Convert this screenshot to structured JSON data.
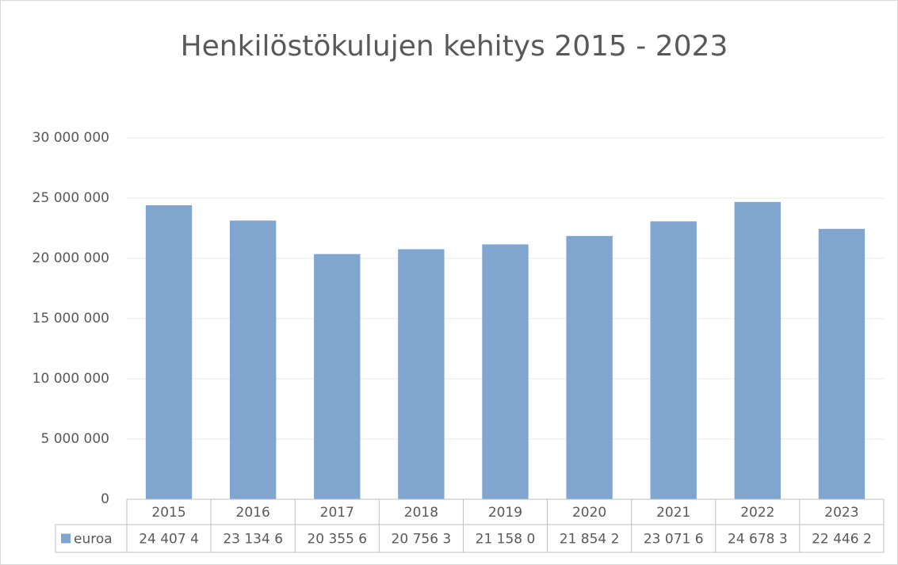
{
  "chart_data": {
    "type": "bar",
    "title": "Henkilöstökulujen kehitys 2015 - 2023",
    "categories": [
      "2015",
      "2016",
      "2017",
      "2018",
      "2019",
      "2020",
      "2021",
      "2022",
      "2023"
    ],
    "series": [
      {
        "name": "euroa",
        "color": "#80a6d0",
        "values": [
          24407400,
          23134600,
          20355600,
          20756300,
          21158000,
          21854200,
          23071600,
          24678300,
          22446200
        ],
        "value_labels": [
          "24 407 4",
          "23 134 6",
          "20 355 6",
          "20 756 3",
          "21 158 0",
          "21 854 2",
          "23 071 6",
          "24 678 3",
          "22 446 2"
        ]
      }
    ],
    "ylim": [
      0,
      30000000
    ],
    "yticks": [
      0,
      {
        "value": 5000000,
        "label": "5 000 000"
      },
      {
        "value": 10000000,
        "label": "10 000 000"
      },
      {
        "value": 15000000,
        "label": "15 000 000"
      },
      {
        "value": 20000000,
        "label": "20 000 000"
      },
      {
        "value": 25000000,
        "label": "25 000 000"
      },
      {
        "value": 30000000,
        "label": "30 000 000"
      }
    ],
    "grid": true
  }
}
